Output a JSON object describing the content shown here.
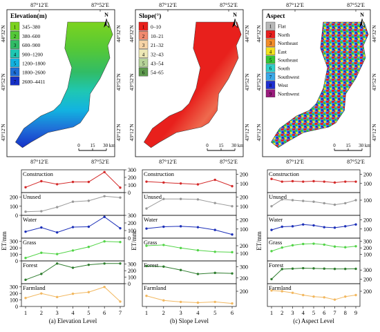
{
  "maps": [
    {
      "title": "Elevation(m)",
      "lon_ticks": [
        "87°12′E",
        "87°52′E"
      ],
      "lat_ticks": [
        "44°32′N",
        "43°52′N",
        "43°12′N"
      ],
      "legend": [
        {
          "num": "1",
          "label": "345–380",
          "color": "#7CD31F"
        },
        {
          "num": "2",
          "label": "380–600",
          "color": "#54C838"
        },
        {
          "num": "3",
          "label": "600–900",
          "color": "#31BC66"
        },
        {
          "num": "4",
          "label": "900–1200",
          "color": "#1FC7B3"
        },
        {
          "num": "5",
          "label": "1200–1800",
          "color": "#12B3E0"
        },
        {
          "num": "6",
          "label": "1800–2600",
          "color": "#1F6FD8"
        },
        {
          "num": "7",
          "label": "2600–4411",
          "color": "#1630C8"
        }
      ],
      "scale": [
        "0",
        "15",
        "30 km"
      ]
    },
    {
      "title": "Slope(°)",
      "lon_ticks": [
        "87°12′E",
        "87°52′E"
      ],
      "lat_ticks": [
        "44°32′N",
        "43°52′N",
        "43°12′N"
      ],
      "legend": [
        {
          "num": "1",
          "label": "0–10",
          "color": "#E8201C"
        },
        {
          "num": "2",
          "label": "10–21",
          "color": "#F08A6E"
        },
        {
          "num": "3",
          "label": "21–32",
          "color": "#F6D3A6"
        },
        {
          "num": "4",
          "label": "32–43",
          "color": "#EDE8B6"
        },
        {
          "num": "5",
          "label": "43–54",
          "color": "#B7D49A"
        },
        {
          "num": "6",
          "label": "54–65",
          "color": "#5E9A4E"
        }
      ],
      "scale": [
        "0",
        "15",
        "30 km"
      ]
    },
    {
      "title": "Aspect",
      "lon_ticks": [
        "87°12′E",
        "87°52′E"
      ],
      "lat_ticks": [
        "44°32′N",
        "43°52′N",
        "43°12′N"
      ],
      "legend": [
        {
          "num": "1",
          "label": "Flat",
          "color": "#B8B8B8"
        },
        {
          "num": "2",
          "label": "North",
          "color": "#E81E1E"
        },
        {
          "num": "3",
          "label": "Northeast",
          "color": "#F28C28"
        },
        {
          "num": "4",
          "label": "East",
          "color": "#F2E21E"
        },
        {
          "num": "5",
          "label": "Southeast",
          "color": "#36C536"
        },
        {
          "num": "6",
          "label": "South",
          "color": "#2ECFC8"
        },
        {
          "num": "7",
          "label": "Southwest",
          "color": "#3AA8E8"
        },
        {
          "num": "8",
          "label": "West",
          "color": "#1E2FD2"
        },
        {
          "num": "9",
          "label": "Northwest",
          "color": "#9B1C7E"
        }
      ],
      "scale": [
        "0",
        "15",
        "30 km"
      ]
    }
  ],
  "north_label": "N",
  "y_axis_label": "ET/mm",
  "chart_data": [
    {
      "type": "line",
      "caption": "(a) Elevation Level",
      "x": [
        1,
        2,
        3,
        4,
        5,
        6,
        7
      ],
      "series": [
        {
          "name": "Construction",
          "color": "#D42A2A",
          "values": [
            70,
            150,
            110,
            140,
            140,
            270,
            65
          ],
          "ylim": [
            0,
            300
          ],
          "ticks": [
            0,
            100,
            200,
            300
          ],
          "axis_side": "right"
        },
        {
          "name": "Unused",
          "color": "#999999",
          "values": [
            40,
            45,
            90,
            150,
            160,
            210,
            195
          ],
          "ylim": [
            0,
            250
          ],
          "ticks": [
            0,
            100,
            200
          ],
          "axis_side": "left"
        },
        {
          "name": "Water",
          "color": "#1C2FB8",
          "values": [
            85,
            140,
            75,
            145,
            150,
            280,
            130
          ],
          "ylim": [
            0,
            300
          ],
          "ticks": [
            0,
            100,
            200,
            300
          ],
          "axis_side": "right"
        },
        {
          "name": "Grass",
          "color": "#52D447",
          "values": [
            45,
            125,
            105,
            160,
            215,
            300,
            290
          ],
          "ylim": [
            0,
            350
          ],
          "ticks": [
            0,
            100,
            200,
            300
          ],
          "axis_side": "left"
        },
        {
          "name": "Forest",
          "color": "#2E7D2E",
          "values": [
            60,
            150,
            310,
            245,
            290,
            310,
            310
          ],
          "ylim": [
            0,
            350
          ],
          "ticks": [
            0,
            100,
            200,
            300
          ],
          "axis_side": "right"
        },
        {
          "name": "Farmland",
          "color": "#F2B860",
          "values": [
            130,
            200,
            145,
            195,
            220,
            300,
            75
          ],
          "ylim": [
            0,
            350
          ],
          "ticks": [
            0,
            100,
            200,
            300
          ],
          "axis_side": "left"
        }
      ]
    },
    {
      "type": "line",
      "caption": "(b) Slope Level",
      "x": [
        1,
        2,
        3,
        4,
        5,
        6
      ],
      "series": [
        {
          "name": "Construction",
          "color": "#D42A2A",
          "values": [
            120,
            110,
            100,
            90,
            140,
            70
          ],
          "ylim": [
            0,
            250
          ],
          "ticks": [
            100,
            200
          ],
          "axis_side": "right"
        },
        {
          "name": "Unused",
          "color": "#999999",
          "values": [
            75,
            180,
            180,
            175,
            135,
            100
          ],
          "ylim": [
            0,
            250
          ],
          "ticks": [
            100,
            200
          ],
          "axis_side": "right"
        },
        {
          "name": "Water",
          "color": "#1C2FB8",
          "values": [
            105,
            125,
            130,
            120,
            90,
            40
          ],
          "ylim": [
            0,
            250
          ],
          "ticks": [
            100,
            200
          ],
          "axis_side": "right"
        },
        {
          "name": "Grass",
          "color": "#52D447",
          "values": [
            200,
            210,
            170,
            140,
            120,
            115
          ],
          "ylim": [
            0,
            300
          ],
          "ticks": [
            100,
            200
          ],
          "axis_side": "right"
        },
        {
          "name": "Forest",
          "color": "#2E7D2E",
          "values": [
            305,
            300,
            270,
            235,
            245,
            240
          ],
          "ylim": [
            150,
            350
          ],
          "ticks": [
            200,
            300
          ],
          "axis_side": "right"
        },
        {
          "name": "Farmland",
          "color": "#F2B860",
          "values": [
            170,
            140,
            130,
            125,
            130,
            120
          ],
          "ylim": [
            100,
            250
          ],
          "ticks": [
            200
          ],
          "axis_side": "right"
        }
      ]
    },
    {
      "type": "line",
      "caption": "(c) Aspect Level",
      "x": [
        1,
        2,
        3,
        4,
        5,
        6,
        7,
        8,
        9
      ],
      "series": [
        {
          "name": "Construction",
          "color": "#D42A2A",
          "values": [
            150,
            120,
            125,
            120,
            125,
            120,
            110,
            120,
            120
          ],
          "ylim": [
            0,
            250
          ],
          "ticks": [
            100,
            200
          ],
          "axis_side": "right"
        },
        {
          "name": "Unused",
          "color": "#999999",
          "values": [
            60,
            105,
            100,
            95,
            90,
            80,
            70,
            80,
            100
          ],
          "ylim": [
            0,
            150
          ],
          "ticks": [
            100
          ],
          "axis_side": "right"
        },
        {
          "name": "Water",
          "color": "#1C2FB8",
          "values": [
            90,
            125,
            130,
            150,
            140,
            120,
            115,
            130,
            150
          ],
          "ylim": [
            0,
            250
          ],
          "ticks": [
            100,
            200
          ],
          "axis_side": "right"
        },
        {
          "name": "Grass",
          "color": "#52D447",
          "values": [
            150,
            205,
            240,
            260,
            265,
            250,
            220,
            210,
            225
          ],
          "ylim": [
            0,
            350
          ],
          "ticks": [
            100,
            200,
            300
          ],
          "axis_side": "right"
        },
        {
          "name": "Forest",
          "color": "#2E7D2E",
          "values": [
            200,
            310,
            315,
            320,
            318,
            315,
            312,
            312,
            313
          ],
          "ylim": [
            150,
            400
          ],
          "ticks": [
            200,
            300
          ],
          "axis_side": "right"
        },
        {
          "name": "Farmland",
          "color": "#F2B860",
          "values": [
            205,
            200,
            190,
            175,
            165,
            160,
            145,
            165,
            175
          ],
          "ylim": [
            100,
            250
          ],
          "ticks": [
            200
          ],
          "axis_side": "right"
        }
      ]
    }
  ]
}
